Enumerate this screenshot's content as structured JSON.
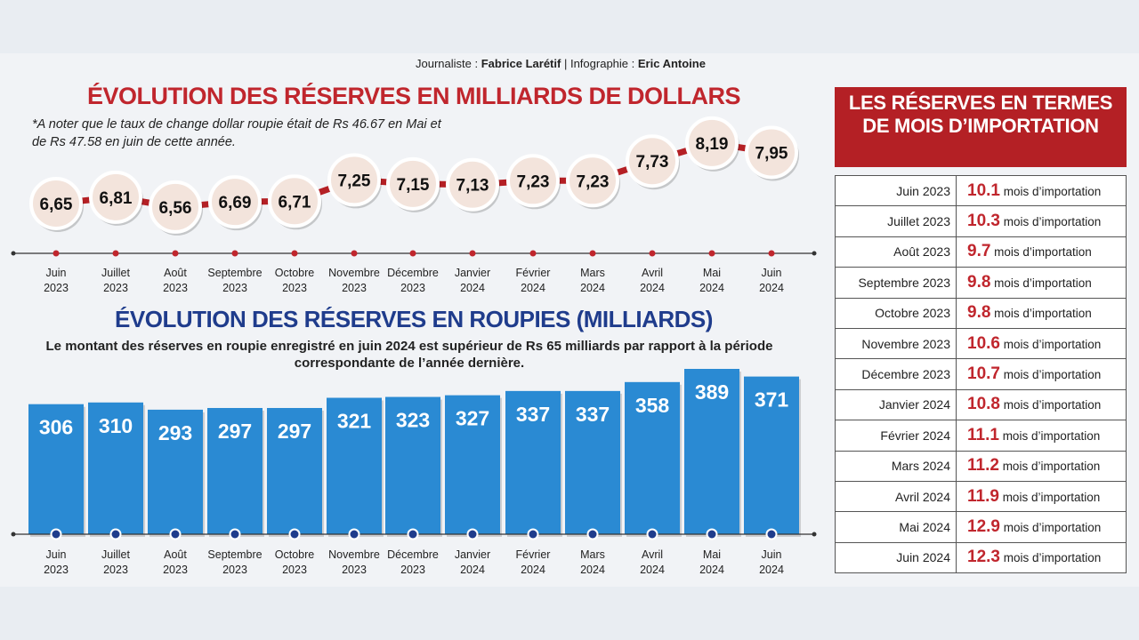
{
  "credits": {
    "journalist_label": "Journaliste :",
    "journalist": "Fabrice Larétif",
    "sep": "|",
    "infographie_label": "Infographie :",
    "infographie": "Eric Antoine"
  },
  "colors": {
    "red": "#c0262d",
    "blue": "#2a8ad3",
    "navy": "#1f3c8c",
    "bubble": "#f3e4dc"
  },
  "chart_data": [
    {
      "type": "line",
      "title": "ÉVOLUTION DES RÉSERVES EN MILLIARDS DE DOLLARS",
      "note": "*A noter que le taux de change dollar roupie était de Rs 46.67 en Mai et de Rs 47.58 en juin de cette année.",
      "categories": [
        [
          "Juin",
          "2023"
        ],
        [
          "Juillet",
          "2023"
        ],
        [
          "Août",
          "2023"
        ],
        [
          "Septembre",
          "2023"
        ],
        [
          "Octobre",
          "2023"
        ],
        [
          "Novembre",
          "2023"
        ],
        [
          "Décembre",
          "2023"
        ],
        [
          "Janvier",
          "2024"
        ],
        [
          "Février",
          "2024"
        ],
        [
          "Mars",
          "2024"
        ],
        [
          "Avril",
          "2024"
        ],
        [
          "Mai",
          "2024"
        ],
        [
          "Juin",
          "2024"
        ]
      ],
      "values": [
        6.65,
        6.81,
        6.56,
        6.69,
        6.71,
        7.25,
        7.15,
        7.13,
        7.23,
        7.23,
        7.73,
        8.19,
        7.95
      ],
      "labels": [
        "6,65",
        "6,81",
        "6,56",
        "6,69",
        "6,71",
        "7,25",
        "7,15",
        "7,13",
        "7,23",
        "7,23",
        "7,73",
        "8,19",
        "7,95"
      ],
      "ylim": [
        6.4,
        8.3
      ]
    },
    {
      "type": "bar",
      "title": "ÉVOLUTION DES RÉSERVES EN ROUPIES  (MILLIARDS)",
      "subtitle": "Le montant des réserves en roupie enregistré en juin 2024 est supérieur de Rs 65 milliards par rapport à la période correspondante de l’année dernière.",
      "categories": [
        [
          "Juin",
          "2023"
        ],
        [
          "Juillet",
          "2023"
        ],
        [
          "Août",
          "2023"
        ],
        [
          "Septembre",
          "2023"
        ],
        [
          "Octobre",
          "2023"
        ],
        [
          "Novembre",
          "2023"
        ],
        [
          "Décembre",
          "2023"
        ],
        [
          "Janvier",
          "2024"
        ],
        [
          "Février",
          "2024"
        ],
        [
          "Mars",
          "2024"
        ],
        [
          "Avril",
          "2024"
        ],
        [
          "Mai",
          "2024"
        ],
        [
          "Juin",
          "2024"
        ]
      ],
      "values": [
        306,
        310,
        293,
        297,
        297,
        321,
        323,
        327,
        337,
        337,
        358,
        389,
        371
      ],
      "ylim": [
        0,
        389
      ]
    },
    {
      "type": "table",
      "title": "LES RÉSERVES EN TERMES DE MOIS D’IMPORTATION",
      "unit": "mois d’importation",
      "rows": [
        {
          "month": "Juin 2023",
          "value": "10.1"
        },
        {
          "month": "Juillet 2023",
          "value": "10.3"
        },
        {
          "month": "Août 2023",
          "value": "9.7"
        },
        {
          "month": "Septembre 2023",
          "value": "9.8"
        },
        {
          "month": "Octobre 2023",
          "value": "9.8"
        },
        {
          "month": "Novembre 2023",
          "value": "10.6"
        },
        {
          "month": "Décembre 2023",
          "value": "10.7"
        },
        {
          "month": "Janvier  2024",
          "value": "10.8"
        },
        {
          "month": "Février 2024",
          "value": "11.1"
        },
        {
          "month": "Mars 2024",
          "value": "11.2"
        },
        {
          "month": "Avril 2024",
          "value": "11.9"
        },
        {
          "month": "Mai 2024",
          "value": "12.9"
        },
        {
          "month": "Juin 2024",
          "value": "12.3"
        }
      ]
    }
  ]
}
